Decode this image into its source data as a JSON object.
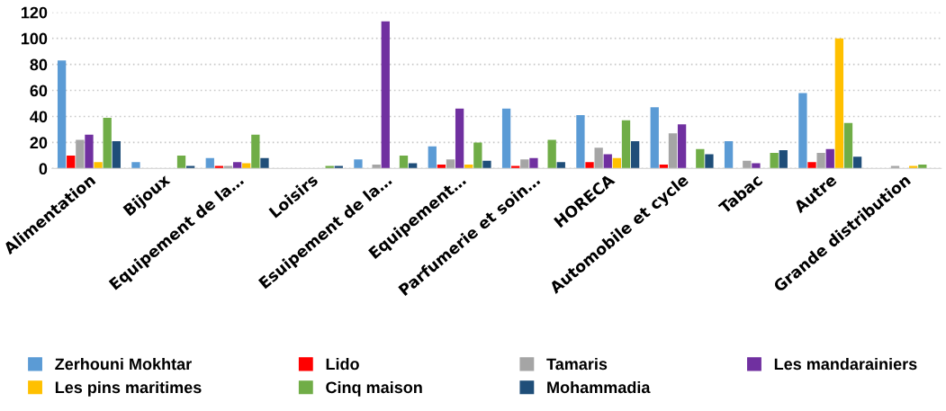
{
  "chart_data": {
    "type": "bar",
    "categories": [
      "Alimentation",
      "Bijoux",
      "Equipement de la…",
      "Loisirs",
      "Esuipement de la…",
      "Equipement…",
      "Parfumerie et soin…",
      "HORECA",
      "Automobile et cycle",
      "Tabac",
      "Autre",
      "Grande distribution"
    ],
    "series": [
      {
        "name": "Zerhouni Mokhtar",
        "color": "#5b9bd5",
        "values": [
          83,
          5,
          8,
          0,
          7,
          17,
          46,
          41,
          47,
          21,
          58,
          0
        ]
      },
      {
        "name": "Lido",
        "color": "#ff0000",
        "values": [
          10,
          0,
          2,
          0,
          0,
          3,
          2,
          5,
          3,
          0,
          5,
          0
        ]
      },
      {
        "name": "Tamaris",
        "color": "#a5a5a5",
        "values": [
          22,
          0,
          2,
          0,
          3,
          7,
          7,
          16,
          27,
          6,
          12,
          2
        ]
      },
      {
        "name": "Les mandarainiers",
        "color": "#7030a0",
        "values": [
          26,
          0,
          5,
          0,
          113,
          46,
          8,
          11,
          34,
          4,
          15,
          0
        ]
      },
      {
        "name": "Les pins maritimes",
        "color": "#ffc000",
        "values": [
          5,
          0,
          4,
          0,
          0,
          3,
          0,
          8,
          0,
          0,
          100,
          2
        ]
      },
      {
        "name": "Cinq maison",
        "color": "#70ad47",
        "values": [
          39,
          10,
          26,
          2,
          10,
          20,
          22,
          37,
          15,
          12,
          35,
          3
        ]
      },
      {
        "name": "Mohammadia",
        "color": "#1f4e79",
        "values": [
          21,
          2,
          8,
          2,
          4,
          6,
          5,
          21,
          11,
          14,
          9,
          0
        ]
      }
    ],
    "ylim": [
      0,
      120
    ],
    "yticks": [
      0,
      20,
      40,
      60,
      80,
      100,
      120
    ],
    "grid": "y",
    "legend": "bottom"
  }
}
